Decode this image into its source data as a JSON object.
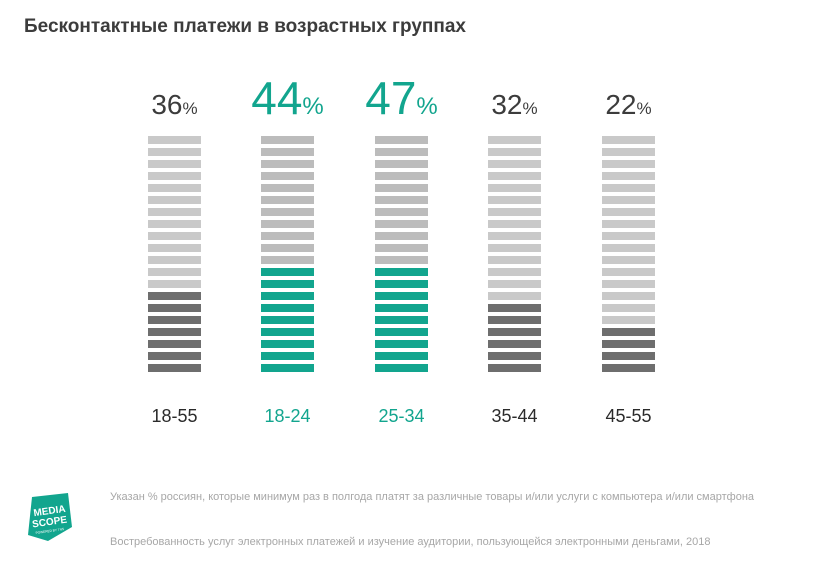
{
  "title": "Бесконтактные платежи в возрастных группах",
  "chart_data": {
    "type": "bar",
    "style": "segmented-stacked-stripes",
    "title": "Бесконтактные платежи в возрастных группах",
    "categories": [
      "18-55",
      "18-24",
      "25-34",
      "35-44",
      "45-55"
    ],
    "values": [
      36,
      44,
      47,
      32,
      22
    ],
    "value_suffix": "%",
    "total_segments": 20,
    "highlighted": [
      false,
      true,
      true,
      false,
      false
    ],
    "colors": {
      "highlight": "#12a58e",
      "filled": "#6e6e6e",
      "empty": "#c9c9c9",
      "empty_highlight": "#bcbcbc",
      "value_text": "#3c3c3c",
      "label_text": "#2b2b2b"
    }
  },
  "footnote": "Указан % россиян, которые минимум раз в полгода платят за различные товары и/или услуги с компьютера и/или смартфона",
  "source": "Востребованность услуг электронных платежей и изучение аудитории, пользующейся электронными деньгами, 2018",
  "logo": {
    "line1": "MEDIA",
    "line2": "SCOPE",
    "tagline": "POWERED BY TNS",
    "color": "#12a58e"
  }
}
